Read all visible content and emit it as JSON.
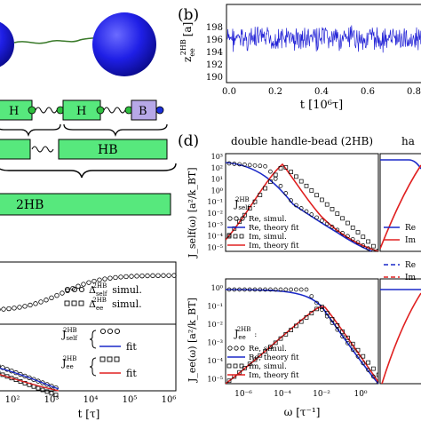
{
  "panels": {
    "b": {
      "label": "(b)",
      "ylabel_main": "z",
      "ylabel_sub": "ee",
      "ylabel_sup": "2HB",
      "ylabel_unit": "[a]",
      "xlabel": "t [10⁶τ]",
      "xticks": [
        "0.0",
        "0.2",
        "0.4",
        "0.6",
        "0.8"
      ],
      "yticks": [
        "198",
        "196",
        "194",
        "192",
        "190"
      ]
    },
    "d": {
      "label": "(d)",
      "title": "double handle-bead (2HB)",
      "title_right": "ha",
      "ylabel_top": "J_self(ω) [a²/k_BT]",
      "ylabel_bottom": "J_ee(ω) [a²/k_BT]",
      "xlabel": "ω [τ⁻¹]",
      "xticks": [
        "10⁻⁶",
        "10⁻⁴",
        "10⁻²",
        "10⁰"
      ],
      "yticks_top": [
        "10³",
        "10²",
        "10¹",
        "10⁰",
        "10⁻¹",
        "10⁻²",
        "10⁻³",
        "10⁻⁴",
        "10⁻⁵"
      ],
      "yticks_bottom": [
        "10⁰",
        "10⁻¹",
        "10⁻²",
        "10⁻³",
        "10⁻⁴",
        "10⁻⁵"
      ],
      "legend_top": {
        "head": "J",
        "head_sub": "self",
        "head_sup": "2HB",
        "entries": [
          "Re, simul.",
          "Re, theory fit",
          "Im, simul.",
          "Im, theory fit"
        ]
      },
      "legend_bottom": {
        "head": "J",
        "head_sub": "ee",
        "head_sup": "2HB",
        "entries": [
          "Re, simul.",
          "Re, theory fit",
          "Im, simul.",
          "Im, theory fit"
        ]
      },
      "legend_right_top": [
        "Re",
        "Im",
        "Re",
        "Im"
      ]
    },
    "c": {
      "xlabel": "t [τ]",
      "xticks": [
        "10²",
        "10³",
        "10⁴",
        "10⁵",
        "10⁶"
      ],
      "legend_top": [
        {
          "sym": "Δ",
          "sub": "self",
          "sup": "2HB",
          "text": "simul."
        },
        {
          "sym": "Δ",
          "sub": "ee",
          "sup": "2HB",
          "text": "simul."
        }
      ],
      "legend_bottom": [
        {
          "sym": "J",
          "sub": "self",
          "sup": "2HB",
          "fit": "fit"
        },
        {
          "sym": "J",
          "sub": "ee",
          "sup": "2HB",
          "fit": "fit"
        }
      ]
    },
    "a": {
      "box_labels": [
        "H",
        "H",
        "B"
      ],
      "bar_label_hb": "HB",
      "bar_label_2hb": "2HB"
    }
  },
  "colors": {
    "bead_blue": "#1f1fe6",
    "box_green": "#57e87d",
    "box_purple": "#b7a8e8",
    "dot_green": "#2fbf3f",
    "dot_blue": "#1b2fd8",
    "trace_blue": "#2323d6",
    "fit_red": "#e02020",
    "fit_blue": "#1a28c8"
  }
}
